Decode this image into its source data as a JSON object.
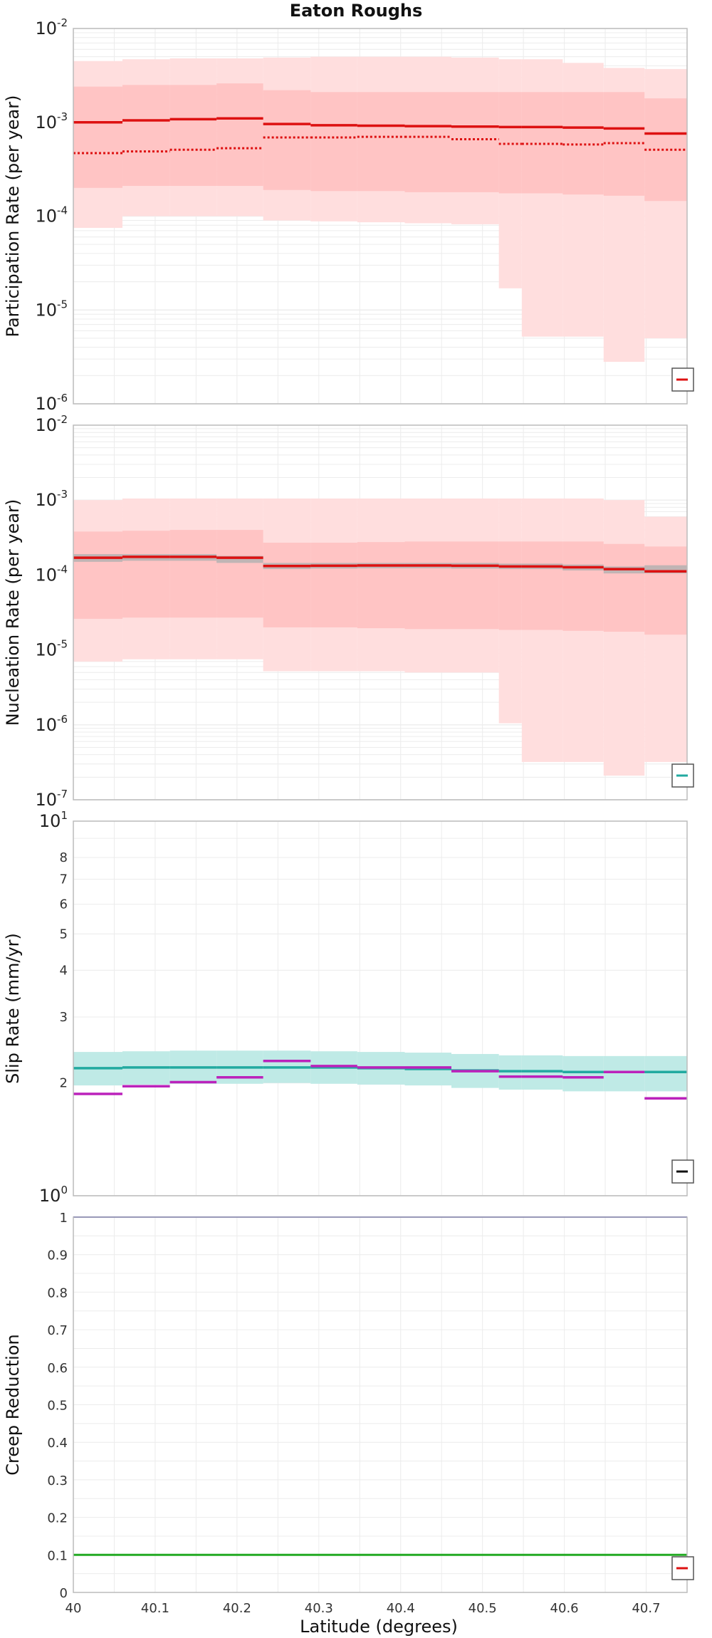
{
  "title": "Eaton Roughs",
  "xlabel": "Latitude (degrees)",
  "chart_data": [
    {
      "type": "line",
      "scale": "log",
      "ylabel": "Participation Rate (per year)",
      "xlim": [
        40.0,
        40.75
      ],
      "ylim": [
        1e-06,
        0.01
      ],
      "edges": [
        40.0,
        40.06,
        40.118,
        40.175,
        40.232,
        40.29,
        40.347,
        40.405,
        40.462,
        40.52,
        40.548,
        40.598,
        40.648,
        40.698,
        40.75
      ],
      "bands": [
        {
          "name": "",
          "color": "#ffdede",
          "lower": [
            7.5e-05,
            0.0001,
            0.0001,
            0.0001,
            9e-05,
            8.8e-05,
            8.6e-05,
            8.4e-05,
            8.2e-05,
            1.7e-05,
            5.2e-06,
            5.2e-06,
            2.8e-06,
            5e-06
          ],
          "upper": [
            0.0045,
            0.0047,
            0.0048,
            0.0048,
            0.0049,
            0.005,
            0.005,
            0.005,
            0.0049,
            0.0047,
            0.0047,
            0.0043,
            0.0038,
            0.0037
          ]
        },
        {
          "name": "",
          "color": "#ffc4c4",
          "lower": [
            0.0002,
            0.00021,
            0.00021,
            0.00021,
            0.00019,
            0.000185,
            0.000185,
            0.00018,
            0.00018,
            0.000175,
            0.000175,
            0.00017,
            0.000165,
            0.000145
          ],
          "upper": [
            0.0024,
            0.0025,
            0.0025,
            0.0026,
            0.0022,
            0.0021,
            0.0021,
            0.0021,
            0.0021,
            0.0021,
            0.0021,
            0.0021,
            0.0021,
            0.0018
          ]
        }
      ],
      "series": [
        {
          "name": "",
          "color": "#dd1111",
          "style": "solid",
          "width": 3.5,
          "values": [
            0.001,
            0.00105,
            0.00108,
            0.0011,
            0.00096,
            0.00093,
            0.00092,
            0.00091,
            0.0009,
            0.00089,
            0.00089,
            0.00088,
            0.00086,
            0.00076
          ]
        },
        {
          "name": "",
          "color": "#dd1111",
          "style": "dotted",
          "width": 3,
          "values": [
            0.00047,
            0.00049,
            0.00051,
            0.00053,
            0.00069,
            0.00069,
            0.0007,
            0.0007,
            0.00066,
            0.00059,
            0.00059,
            0.00058,
            0.0006,
            0.00051
          ]
        }
      ],
      "legend": "bottom-right"
    },
    {
      "type": "line",
      "scale": "log",
      "ylabel": "Nucleation Rate (per year)",
      "xlim": [
        40.0,
        40.75
      ],
      "ylim": [
        1e-07,
        0.01
      ],
      "edges": [
        40.0,
        40.06,
        40.118,
        40.175,
        40.232,
        40.29,
        40.347,
        40.405,
        40.462,
        40.52,
        40.548,
        40.598,
        40.648,
        40.698,
        40.75
      ],
      "bands": [
        {
          "name": "",
          "color": "#ffdede",
          "lower": [
            7e-06,
            7.5e-06,
            7.5e-06,
            7.5e-06,
            5.2e-06,
            5.2e-06,
            5.2e-06,
            5e-06,
            5e-06,
            1.05e-06,
            3.2e-07,
            3.2e-07,
            2.1e-07,
            3.2e-07
          ],
          "upper": [
            0.001,
            0.00105,
            0.00105,
            0.00105,
            0.00105,
            0.00105,
            0.00105,
            0.00105,
            0.00105,
            0.00105,
            0.00105,
            0.00105,
            0.001,
            0.0006
          ]
        },
        {
          "name": "",
          "color": "#ffc4c4",
          "lower": [
            2.6e-05,
            2.7e-05,
            2.7e-05,
            2.7e-05,
            2e-05,
            2e-05,
            1.95e-05,
            1.9e-05,
            1.9e-05,
            1.85e-05,
            1.85e-05,
            1.8e-05,
            1.75e-05,
            1.6e-05
          ],
          "upper": [
            0.00038,
            0.00039,
            0.0004,
            0.0004,
            0.00027,
            0.00027,
            0.000275,
            0.00028,
            0.00028,
            0.00028,
            0.00028,
            0.00028,
            0.00026,
            0.00024
          ]
        },
        {
          "name": "",
          "color": "#b0b0b0",
          "lower": [
            0.00015,
            0.000155,
            0.000155,
            0.000145,
            0.00012,
            0.000122,
            0.000123,
            0.000123,
            0.000122,
            0.00012,
            0.00012,
            0.000115,
            0.000105,
            0.000105
          ],
          "upper": [
            0.00019,
            0.00019,
            0.00019,
            0.00018,
            0.000145,
            0.000145,
            0.000145,
            0.000145,
            0.000145,
            0.000142,
            0.000142,
            0.000138,
            0.00013,
            0.000135
          ]
        }
      ],
      "series": [
        {
          "name": "",
          "color": "#dd1111",
          "style": "solid",
          "width": 3.5,
          "values": [
            0.00017,
            0.000175,
            0.000175,
            0.00017,
            0.000132,
            0.000133,
            0.000134,
            0.000134,
            0.000133,
            0.00013,
            0.00013,
            0.000127,
            0.00012,
            0.000112
          ]
        }
      ],
      "legend": "bottom-right"
    },
    {
      "type": "line",
      "scale": "log",
      "ylabel": "Slip Rate (mm/yr)",
      "xlim": [
        40.0,
        40.75
      ],
      "ylim": [
        1,
        10
      ],
      "minor_tick_labels": [
        2,
        3,
        4,
        5,
        6,
        7,
        8
      ],
      "edges": [
        40.0,
        40.06,
        40.118,
        40.175,
        40.232,
        40.29,
        40.347,
        40.405,
        40.462,
        40.52,
        40.548,
        40.598,
        40.648,
        40.698,
        40.75
      ],
      "bands": [
        {
          "name": "",
          "color": "#bfeae6",
          "lower": [
            1.97,
            1.98,
            1.99,
            1.99,
            2.0,
            1.99,
            1.98,
            1.97,
            1.94,
            1.92,
            1.92,
            1.9,
            1.9,
            1.9
          ],
          "upper": [
            2.42,
            2.43,
            2.44,
            2.44,
            2.44,
            2.43,
            2.42,
            2.41,
            2.39,
            2.37,
            2.37,
            2.36,
            2.36,
            2.36
          ]
        }
      ],
      "series": [
        {
          "name": "",
          "color": "#22aaa0",
          "style": "solid",
          "width": 3.5,
          "values": [
            2.19,
            2.2,
            2.2,
            2.2,
            2.2,
            2.2,
            2.19,
            2.18,
            2.16,
            2.15,
            2.15,
            2.14,
            2.14,
            2.14
          ]
        },
        {
          "name": "",
          "color": "#bb22bb",
          "style": "solid",
          "width": 3.5,
          "values": [
            1.87,
            1.96,
            2.01,
            2.07,
            2.29,
            2.22,
            2.2,
            2.2,
            2.15,
            2.08,
            2.08,
            2.07,
            2.14,
            1.82
          ]
        }
      ],
      "legend": "bottom-right"
    },
    {
      "type": "line",
      "scale": "linear",
      "ylabel": "Creep Reduction",
      "xlim": [
        40.0,
        40.75
      ],
      "ylim": [
        0,
        1
      ],
      "yticks": [
        "0",
        "0.1",
        "0.2",
        "0.3",
        "0.4",
        "0.5",
        "0.6",
        "0.7",
        "0.8",
        "0.9",
        "1"
      ],
      "xticks": [
        "40",
        "40.1",
        "40.2",
        "40.3",
        "40.4",
        "40.5",
        "40.6",
        "40.7"
      ],
      "bands": [],
      "series": [
        {
          "name": "",
          "color": "#2a2aaa",
          "style": "solid",
          "width": 2,
          "x": [
            40.0,
            40.75
          ],
          "values": [
            1.0,
            1.0
          ]
        },
        {
          "name": "",
          "color": "#22aa22",
          "style": "solid",
          "width": 3,
          "x": [
            40.0,
            40.75
          ],
          "values": [
            0.1,
            0.1
          ]
        }
      ],
      "legend": "bottom-right"
    }
  ],
  "legend_swatches": [
    "#dd1111",
    "#22aaa0",
    "#111111",
    "#dd1111"
  ],
  "colors": {
    "grid": "#ececec",
    "frame": "#bcbcbc"
  }
}
